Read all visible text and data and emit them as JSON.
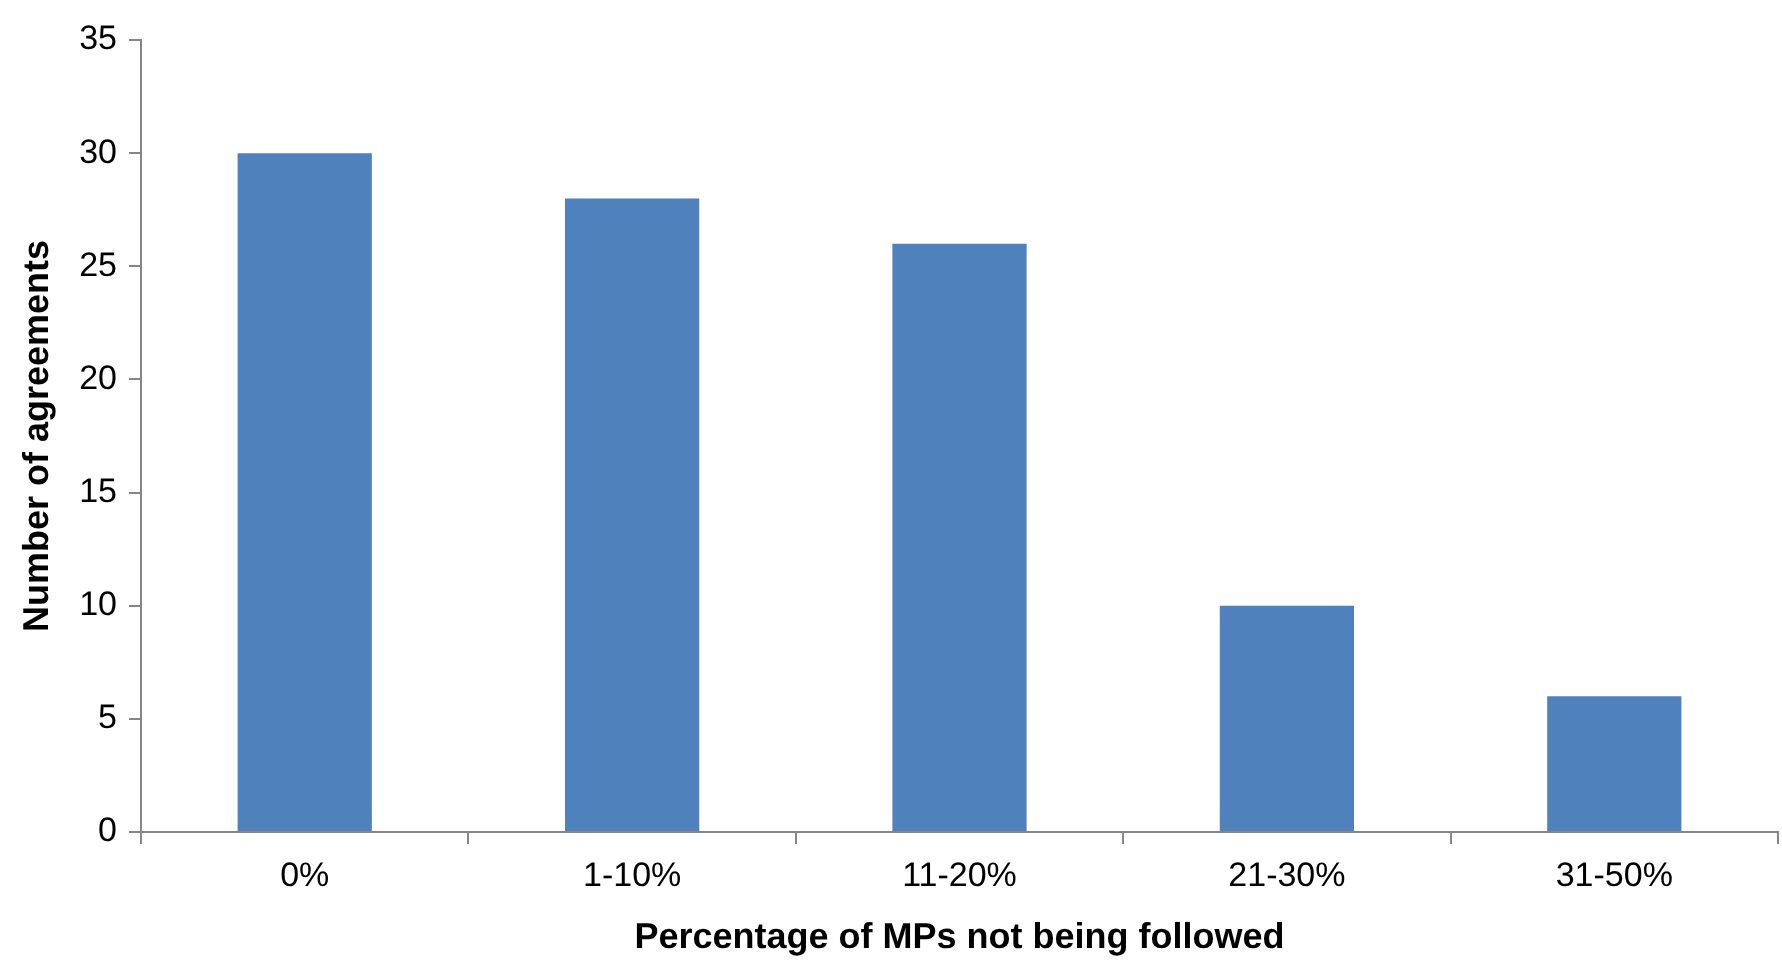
{
  "chart_data": {
    "type": "bar",
    "xlabel": "Percentage of MPs not being followed",
    "ylabel": "Number of agreements",
    "categories": [
      "0%",
      "1-10%",
      "11-20%",
      "21-30%",
      "31-50%"
    ],
    "values": [
      30,
      28,
      26,
      10,
      6
    ],
    "color": "#4f81bd",
    "ylim": [
      0,
      35
    ],
    "yticks": [
      0,
      5,
      10,
      15,
      20,
      25,
      30,
      35
    ]
  }
}
